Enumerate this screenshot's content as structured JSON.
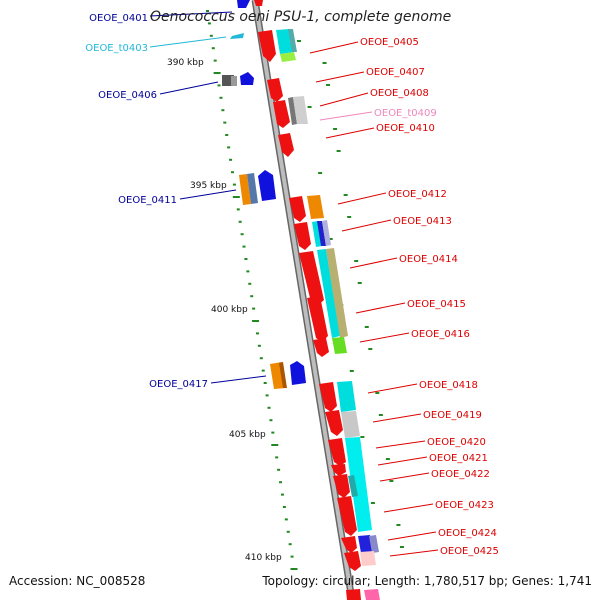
{
  "title": "Oenococcus oeni PSU-1, complete genome",
  "footer": {
    "accession": "Accession: NC_008528",
    "topology": "Topology: circular; Length: 1,780,517 bp; Genes: 1,741"
  },
  "colors": {
    "forward_gene": "#ee1111",
    "backbone": "#999999",
    "tick": "#228822",
    "label_red": "#dd0000",
    "label_blue": "#00009a",
    "label_cyan": "#22b8d8",
    "label_pink": "#ee88bb"
  },
  "scale_labels": [
    "390 kbp",
    "395 kbp",
    "400 kbp",
    "405 kbp",
    "410 kbp"
  ],
  "genes": [
    {
      "name": "OEOE_0401",
      "strand": "-",
      "color": "label_blue"
    },
    {
      "name": "OEOE_t0403",
      "strand": "-",
      "color": "label_cyan"
    },
    {
      "name": "OEOE_0405",
      "strand": "+",
      "color": "label_red"
    },
    {
      "name": "OEOE_0406",
      "strand": "-",
      "color": "label_blue"
    },
    {
      "name": "OEOE_0407",
      "strand": "+",
      "color": "label_red"
    },
    {
      "name": "OEOE_0408",
      "strand": "+",
      "color": "label_red"
    },
    {
      "name": "OEOE_t0409",
      "strand": "+",
      "color": "label_pink"
    },
    {
      "name": "OEOE_0410",
      "strand": "+",
      "color": "label_red"
    },
    {
      "name": "OEOE_0411",
      "strand": "-",
      "color": "label_blue"
    },
    {
      "name": "OEOE_0412",
      "strand": "+",
      "color": "label_red"
    },
    {
      "name": "OEOE_0413",
      "strand": "+",
      "color": "label_red"
    },
    {
      "name": "OEOE_0414",
      "strand": "+",
      "color": "label_red"
    },
    {
      "name": "OEOE_0415",
      "strand": "+",
      "color": "label_red"
    },
    {
      "name": "OEOE_0416",
      "strand": "+",
      "color": "label_red"
    },
    {
      "name": "OEOE_0417",
      "strand": "-",
      "color": "label_blue"
    },
    {
      "name": "OEOE_0418",
      "strand": "+",
      "color": "label_red"
    },
    {
      "name": "OEOE_0419",
      "strand": "+",
      "color": "label_red"
    },
    {
      "name": "OEOE_0420",
      "strand": "+",
      "color": "label_red"
    },
    {
      "name": "OEOE_0421",
      "strand": "+",
      "color": "label_red"
    },
    {
      "name": "OEOE_0422",
      "strand": "+",
      "color": "label_red"
    },
    {
      "name": "OEOE_0423",
      "strand": "+",
      "color": "label_red"
    },
    {
      "name": "OEOE_0424",
      "strand": "+",
      "color": "label_red"
    },
    {
      "name": "OEOE_0425",
      "strand": "+",
      "color": "label_red"
    }
  ]
}
